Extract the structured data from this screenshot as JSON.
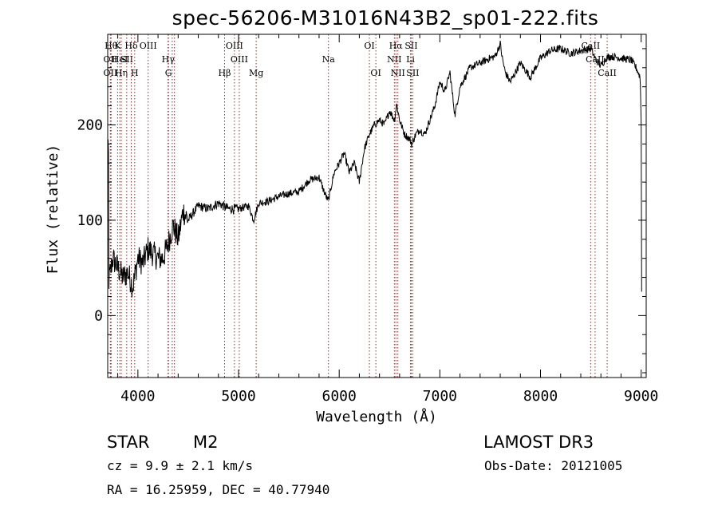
{
  "chart_data": {
    "type": "line",
    "title": "spec-56206-M31016N43B2_sp01-222.fits",
    "xlabel": "Wavelength (Å)",
    "ylabel": "Flux (relative)",
    "xlim": [
      3700,
      9050
    ],
    "ylim": [
      -65,
      295
    ],
    "xticks": [
      4000,
      5000,
      6000,
      7000,
      8000,
      9000
    ],
    "yticks": [
      0,
      100,
      200
    ],
    "series": [
      {
        "name": "spectrum",
        "x": [
          3700,
          3750,
          3800,
          3850,
          3900,
          3950,
          4000,
          4050,
          4100,
          4150,
          4200,
          4250,
          4300,
          4350,
          4400,
          4450,
          4500,
          4600,
          4700,
          4800,
          4900,
          5000,
          5100,
          5150,
          5200,
          5300,
          5400,
          5500,
          5600,
          5700,
          5800,
          5850,
          5890,
          5900,
          5950,
          6000,
          6050,
          6100,
          6150,
          6200,
          6250,
          6300,
          6350,
          6400,
          6450,
          6500,
          6550,
          6570,
          6600,
          6650,
          6700,
          6720,
          6760,
          6800,
          6850,
          6900,
          6950,
          7000,
          7050,
          7100,
          7150,
          7200,
          7300,
          7400,
          7500,
          7550,
          7600,
          7620,
          7650,
          7700,
          7750,
          7800,
          7900,
          8000,
          8100,
          8200,
          8300,
          8400,
          8500,
          8550,
          8600,
          8650,
          8700,
          8800,
          8900,
          8950,
          8990,
          9000
        ],
        "values": [
          30,
          60,
          50,
          40,
          45,
          30,
          60,
          55,
          70,
          65,
          60,
          60,
          75,
          95,
          80,
          110,
          100,
          115,
          112,
          118,
          112,
          112,
          115,
          100,
          118,
          120,
          125,
          128,
          130,
          142,
          145,
          130,
          120,
          125,
          150,
          160,
          170,
          150,
          160,
          140,
          175,
          190,
          200,
          205,
          200,
          215,
          205,
          222,
          205,
          190,
          185,
          180,
          190,
          195,
          190,
          205,
          220,
          245,
          235,
          255,
          210,
          240,
          260,
          265,
          270,
          272,
          285,
          270,
          255,
          245,
          255,
          265,
          250,
          270,
          278,
          280,
          275,
          278,
          280,
          268,
          262,
          270,
          272,
          270,
          268,
          260,
          250,
          205
        ]
      }
    ],
    "lines": [
      {
        "x": 3734,
        "label": "Hθ",
        "row": 1
      },
      {
        "x": 3727,
        "label": "OII",
        "row": 2
      },
      {
        "x": 3727,
        "label": "OII",
        "row": 3
      },
      {
        "x": 3798,
        "label": "K",
        "row": 1
      },
      {
        "x": 3820,
        "label": "HeI",
        "row": 2
      },
      {
        "x": 3835,
        "label": "Hη",
        "row": 3
      },
      {
        "x": 3889,
        "label": "SII",
        "row": 2
      },
      {
        "x": 3934,
        "label": "Hδ",
        "row": 1
      },
      {
        "x": 3968,
        "label": "H",
        "row": 3
      },
      {
        "x": 4102,
        "label": "OIII",
        "row": 1
      },
      {
        "x": 4300,
        "label": "Hγ",
        "row": 2
      },
      {
        "x": 4304,
        "label": "G",
        "row": 3
      },
      {
        "x": 4341,
        "label": "",
        "row": 0
      },
      {
        "x": 4363,
        "label": "",
        "row": 0
      },
      {
        "x": 4861,
        "label": "Hβ",
        "row": 3
      },
      {
        "x": 4959,
        "label": "OIII",
        "row": 1
      },
      {
        "x": 5007,
        "label": "OIII",
        "row": 2
      },
      {
        "x": 5175,
        "label": "Mg",
        "row": 3
      },
      {
        "x": 5893,
        "label": "Na",
        "row": 2
      },
      {
        "x": 6300,
        "label": "OI",
        "row": 1
      },
      {
        "x": 6364,
        "label": "OI",
        "row": 3
      },
      {
        "x": 6548,
        "label": "NII",
        "row": 2
      },
      {
        "x": 6563,
        "label": "Hα",
        "row": 1
      },
      {
        "x": 6583,
        "label": "NII",
        "row": 3
      },
      {
        "x": 6708,
        "label": "Li",
        "row": 2
      },
      {
        "x": 6716,
        "label": "SII",
        "row": 1
      },
      {
        "x": 6731,
        "label": "SII",
        "row": 3
      },
      {
        "x": 8498,
        "label": "CaII",
        "row": 1
      },
      {
        "x": 8542,
        "label": "CaII",
        "row": 2
      },
      {
        "x": 8662,
        "label": "CaII",
        "row": 3
      }
    ]
  },
  "info": {
    "object_class": "STAR",
    "subclass": "M2",
    "survey": "LAMOST  DR3",
    "redshift": "cz = 9.9 ± 2.1 km/s",
    "obs_date": "Obs-Date: 20121005",
    "coords": "RA =  16.25959, DEC =  40.77940"
  },
  "colors": {
    "line_marker": "#b22222",
    "spectrum": "#000000"
  }
}
